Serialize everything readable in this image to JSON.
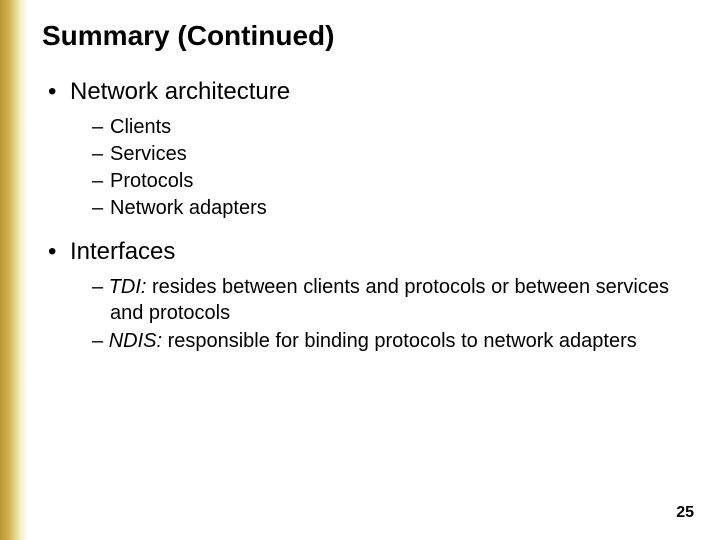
{
  "slide": {
    "title": "Summary (Continued)",
    "page_number": "25"
  },
  "colors": {
    "background": "#ffffff",
    "text": "#000000",
    "gradient_start": "#b8972f",
    "gradient_mid": "#d4b556",
    "gradient_end": "#ffffff"
  },
  "fonts": {
    "title_size_pt": 28,
    "level1_size_pt": 24,
    "level2_size_pt": 20,
    "family": "Arial"
  },
  "bullets": [
    {
      "text": "Network architecture",
      "children": [
        {
          "text": "Clients"
        },
        {
          "text": "Services"
        },
        {
          "text": "Protocols"
        },
        {
          "text": "Network adapters"
        }
      ]
    },
    {
      "text": "Interfaces",
      "children": [
        {
          "italic_lead": "TDI:",
          "rest": " resides between clients and protocols or between services and protocols"
        },
        {
          "italic_lead": "NDIS:",
          "rest": " responsible for binding protocols to network adapters"
        }
      ]
    }
  ]
}
